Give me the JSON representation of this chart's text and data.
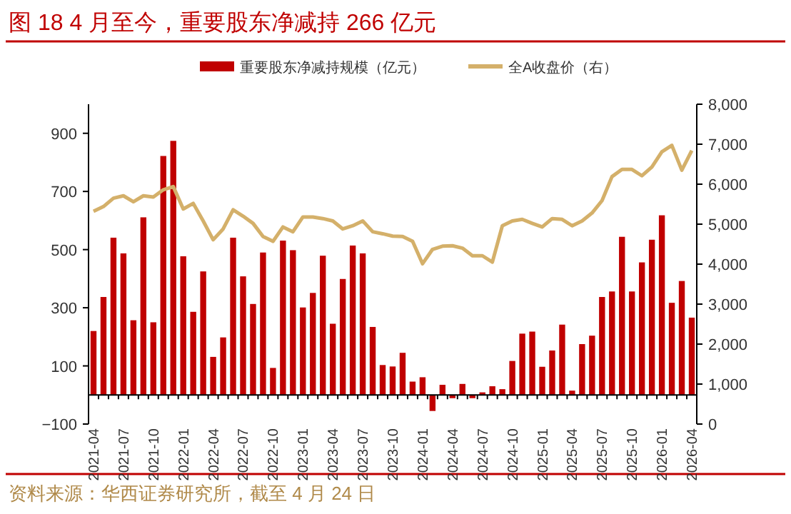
{
  "chart_data": {
    "type": "bar",
    "title": "图 18 4 月至今，重要股东净减持 266 亿元",
    "categories": [
      "2021-04",
      null,
      null,
      "2021-07",
      null,
      null,
      "2021-10",
      null,
      null,
      "2022-01",
      null,
      null,
      "2022-04",
      null,
      null,
      "2022-07",
      null,
      null,
      "2022-10",
      null,
      null,
      "2023-01",
      null,
      null,
      "2023-04",
      null,
      null,
      "2023-07",
      null,
      null,
      "2023-10",
      null,
      null,
      "2024-01",
      null,
      null,
      "2024-04",
      null,
      null,
      "2024-07",
      null,
      null,
      "2024-10",
      null,
      null,
      "2025-01",
      null,
      null,
      "2025-04",
      null,
      null,
      "2025-07",
      null,
      null,
      "2025-10",
      null,
      null,
      "2026-01",
      null,
      null,
      "2026-04"
    ],
    "series": [
      {
        "name": "重要股东净减持规模（亿元）",
        "color": "#c00000",
        "values": [
          220,
          337,
          541,
          487,
          257,
          611,
          250,
          822,
          874,
          477,
          286,
          425,
          131,
          198,
          541,
          408,
          313,
          490,
          93,
          531,
          498,
          301,
          351,
          479,
          245,
          399,
          514,
          487,
          234,
          103,
          98,
          145,
          46,
          61,
          -55,
          35,
          -11,
          38,
          -11,
          9,
          30,
          20,
          117,
          211,
          218,
          97,
          153,
          242,
          15,
          175,
          204,
          337,
          356,
          544,
          356,
          456,
          534,
          618,
          317,
          392,
          266
        ]
      },
      {
        "name": "全A收盘价（右）",
        "type": "line",
        "axis": "y2",
        "color": "#d4b06a",
        "values": [
          5320,
          5440,
          5650,
          5710,
          5560,
          5710,
          5680,
          5860,
          5940,
          5380,
          5520,
          5080,
          4610,
          4880,
          5360,
          5200,
          5020,
          4690,
          4570,
          4930,
          4810,
          5180,
          5180,
          5140,
          5080,
          4880,
          4960,
          5080,
          4810,
          4760,
          4700,
          4690,
          4570,
          4010,
          4370,
          4450,
          4460,
          4400,
          4210,
          4210,
          4050,
          4960,
          5080,
          5120,
          5020,
          4930,
          5140,
          5120,
          4960,
          5080,
          5280,
          5590,
          6190,
          6370,
          6370,
          6210,
          6430,
          6810,
          6970,
          6350,
          6840
        ]
      }
    ],
    "ylim": [
      -100,
      1000
    ],
    "yticks": [
      -100,
      100,
      300,
      500,
      700,
      900
    ],
    "y2lim": [
      0,
      8000
    ],
    "y2ticks": [
      0,
      {
        "value": 1000,
        "label": "1,000"
      },
      {
        "value": 2000,
        "label": "2,000"
      },
      {
        "value": 3000,
        "label": "3,000"
      },
      {
        "value": 4000,
        "label": "4,000"
      },
      {
        "value": 5000,
        "label": "5,000"
      },
      {
        "value": 6000,
        "label": "6,000"
      },
      {
        "value": 7000,
        "label": "7,000"
      },
      {
        "value": 8000,
        "label": "8,000"
      }
    ],
    "legend": "top",
    "annotations": [
      "资料来源：华西证券研究所，截至 4 月 24 日"
    ]
  }
}
